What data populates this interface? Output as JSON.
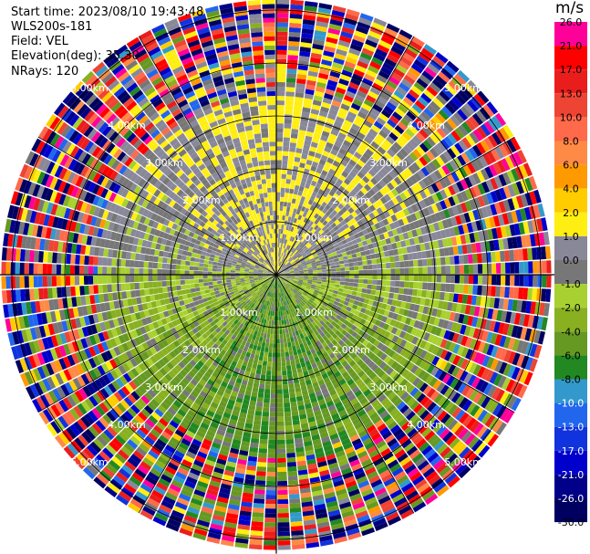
{
  "header": {
    "start_time": "Start time: 2023/08/10 19:43:48",
    "instrument": "WLS200s-181",
    "field": "Field: VEL",
    "elevation": "Elevation(deg): 35.30",
    "nrays": "NRays: 120"
  },
  "colorbar": {
    "unit": "m/s",
    "bins": [
      {
        "label": "26.0",
        "color": "#ff0099"
      },
      {
        "label": "21.0",
        "color": "#ff0000"
      },
      {
        "label": "17.0",
        "color": "#ea1d1d"
      },
      {
        "label": "13.0",
        "color": "#ee4433"
      },
      {
        "label": "10.0",
        "color": "#ff6a4a"
      },
      {
        "label": "8.0",
        "color": "#ff8a45"
      },
      {
        "label": "6.0",
        "color": "#ff9900"
      },
      {
        "label": "4.0",
        "color": "#ffcc00"
      },
      {
        "label": "2.0",
        "color": "#ffee11"
      },
      {
        "label": "1.0",
        "color": "#888899"
      },
      {
        "label": "0.0",
        "color": "#777777"
      },
      {
        "label": "-1.0",
        "color": "#a8d030"
      },
      {
        "label": "-2.0",
        "color": "#88b020"
      },
      {
        "label": "-4.0",
        "color": "#669922"
      },
      {
        "label": "-6.0",
        "color": "#228822"
      },
      {
        "label": "-8.0",
        "color": "#3399cc"
      },
      {
        "label": "-10.0",
        "color": "#2266ee"
      },
      {
        "label": "-13.0",
        "color": "#1133dd"
      },
      {
        "label": "-17.0",
        "color": "#0000cc"
      },
      {
        "label": "-21.0",
        "color": "#000088"
      },
      {
        "label": "-26.0",
        "color": "#000060"
      },
      {
        "label": "-30.0",
        "color": ""
      }
    ]
  },
  "chart_data": {
    "type": "polar-ppi",
    "field": "VEL",
    "unit": "m/s",
    "nrays": 120,
    "range_ring_labels": [
      "1.00km",
      "2.00km",
      "3.00km",
      "4.00km",
      "5.00km"
    ],
    "range_rings_km": [
      1,
      2,
      3,
      4,
      5
    ],
    "max_range_km": 5.2,
    "velocity_pattern": {
      "toward_north_mean": 2.5,
      "toward_south_mean": -3.5,
      "noisy_beyond_km": 3.3
    }
  }
}
